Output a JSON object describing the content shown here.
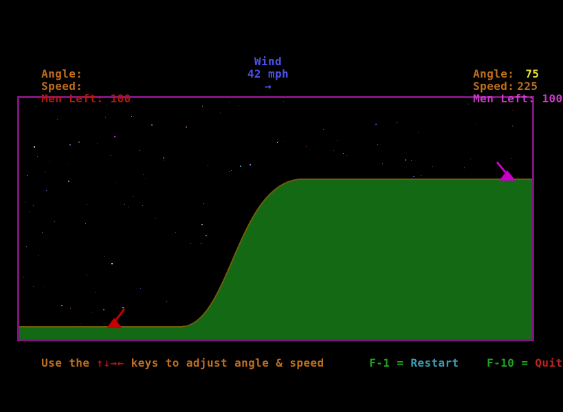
{
  "colors": {
    "background": "#000000",
    "label_brown": "#BE6E1E",
    "value_brown": "#BE6E1E",
    "red_text": "#B51616",
    "blue_text": "#4C52E8",
    "yellow_value": "#EDE438",
    "magenta_text": "#C83CC8",
    "fkey_green": "#1FA51F",
    "restart_teal": "#3D9DB3",
    "quit_red": "#BB2222",
    "border_purple": "#821482",
    "terrain_green": "#146914",
    "terrain_outline": "#6E5F0A",
    "left_tank_red": "#C80000",
    "right_tank_magenta": "#C800C8"
  },
  "status": {
    "player_left": {
      "angle_label": "Angle:",
      "angle_value": "",
      "speed_label": "Speed:",
      "speed_value": "",
      "men_label": "Men Left:",
      "men_value": "100"
    },
    "wind": {
      "label": "Wind",
      "value": "42 mph",
      "direction_icon": "→"
    },
    "player_right": {
      "angle_label": "Angle:",
      "angle_value": "75",
      "speed_label": "Speed:",
      "speed_value": "225",
      "men_label": "Men Left:",
      "men_value": "100"
    }
  },
  "help": {
    "adjust_prefix": "Use the ",
    "arrow_keys_icon": "↑↓→←",
    "adjust_suffix": " keys to adjust angle & speed",
    "restart_key": "F-1",
    "restart_eq": " = ",
    "restart_label": "Restart",
    "quit_key": "F-10",
    "quit_eq": " = ",
    "quit_label": "Quit"
  },
  "stars": {
    "count": 170,
    "colors": [
      "#8a8aee",
      "#c44cc4",
      "#c88848",
      "#c8c8c8",
      "#5050c8",
      "#c44848",
      "#8848c8",
      "#48a0c0"
    ]
  }
}
